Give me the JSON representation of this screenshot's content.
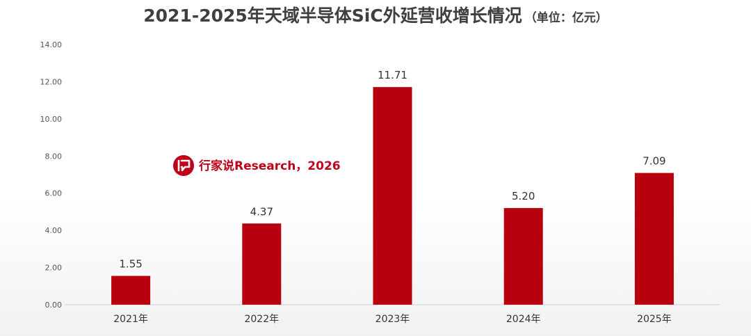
{
  "chart_data": {
    "type": "bar",
    "title": "2021-2025年天域半导体SiC外延营收增长情况",
    "subtitle": "（单位：亿元）",
    "categories": [
      "2021年",
      "2022年",
      "2023年",
      "2024年",
      "2025年"
    ],
    "values": [
      1.55,
      4.37,
      11.71,
      5.2,
      7.09
    ],
    "data_labels": [
      "1.55",
      "4.37",
      "11.71",
      "5.20",
      "7.09"
    ],
    "yticks": [
      "0.00",
      "2.00",
      "4.00",
      "6.00",
      "8.00",
      "10.00",
      "12.00",
      "14.00"
    ],
    "ylim": [
      0,
      14
    ],
    "grid": false,
    "xlabel": "",
    "ylabel": "",
    "bar_color": "#b8000f"
  },
  "watermark": {
    "text": "行家说Research，2026",
    "logo_color": "#c0001a",
    "logo_icon": "speech-bubble-logo-icon"
  }
}
